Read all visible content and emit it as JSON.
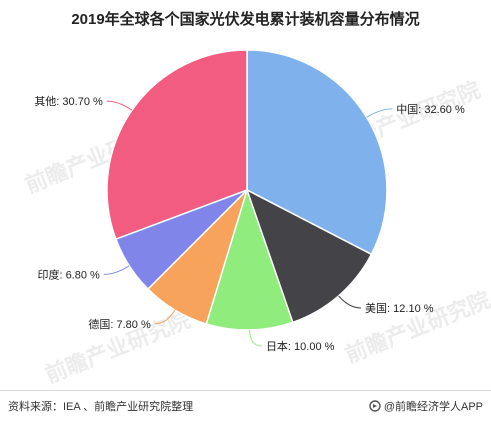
{
  "chart_data": {
    "type": "pie",
    "title": "2019年全球各个国家光伏发电累计装机容量分布情况",
    "slices": [
      {
        "label": "中国",
        "value": 32.6,
        "text": "中国: 32.60 %",
        "color": "#7fb2ec"
      },
      {
        "label": "美国",
        "value": 12.1,
        "text": "美国: 12.10 %",
        "color": "#434348"
      },
      {
        "label": "日本",
        "value": 10.0,
        "text": "日本: 10.00 %",
        "color": "#90ed7d"
      },
      {
        "label": "德国",
        "value": 7.8,
        "text": "德国: 7.80 %",
        "color": "#f7a35c"
      },
      {
        "label": "印度",
        "value": 6.8,
        "text": "印度: 6.80 %",
        "color": "#8085e9"
      },
      {
        "label": "其他",
        "value": 30.7,
        "text": "其他: 30.70 %",
        "color": "#f15c80"
      }
    ]
  },
  "footer": {
    "source": "资料来源：IEA 、前瞻产业研究院整理",
    "brand": "@前瞻经济学人APP"
  },
  "watermark": "前瞻产业研究院"
}
